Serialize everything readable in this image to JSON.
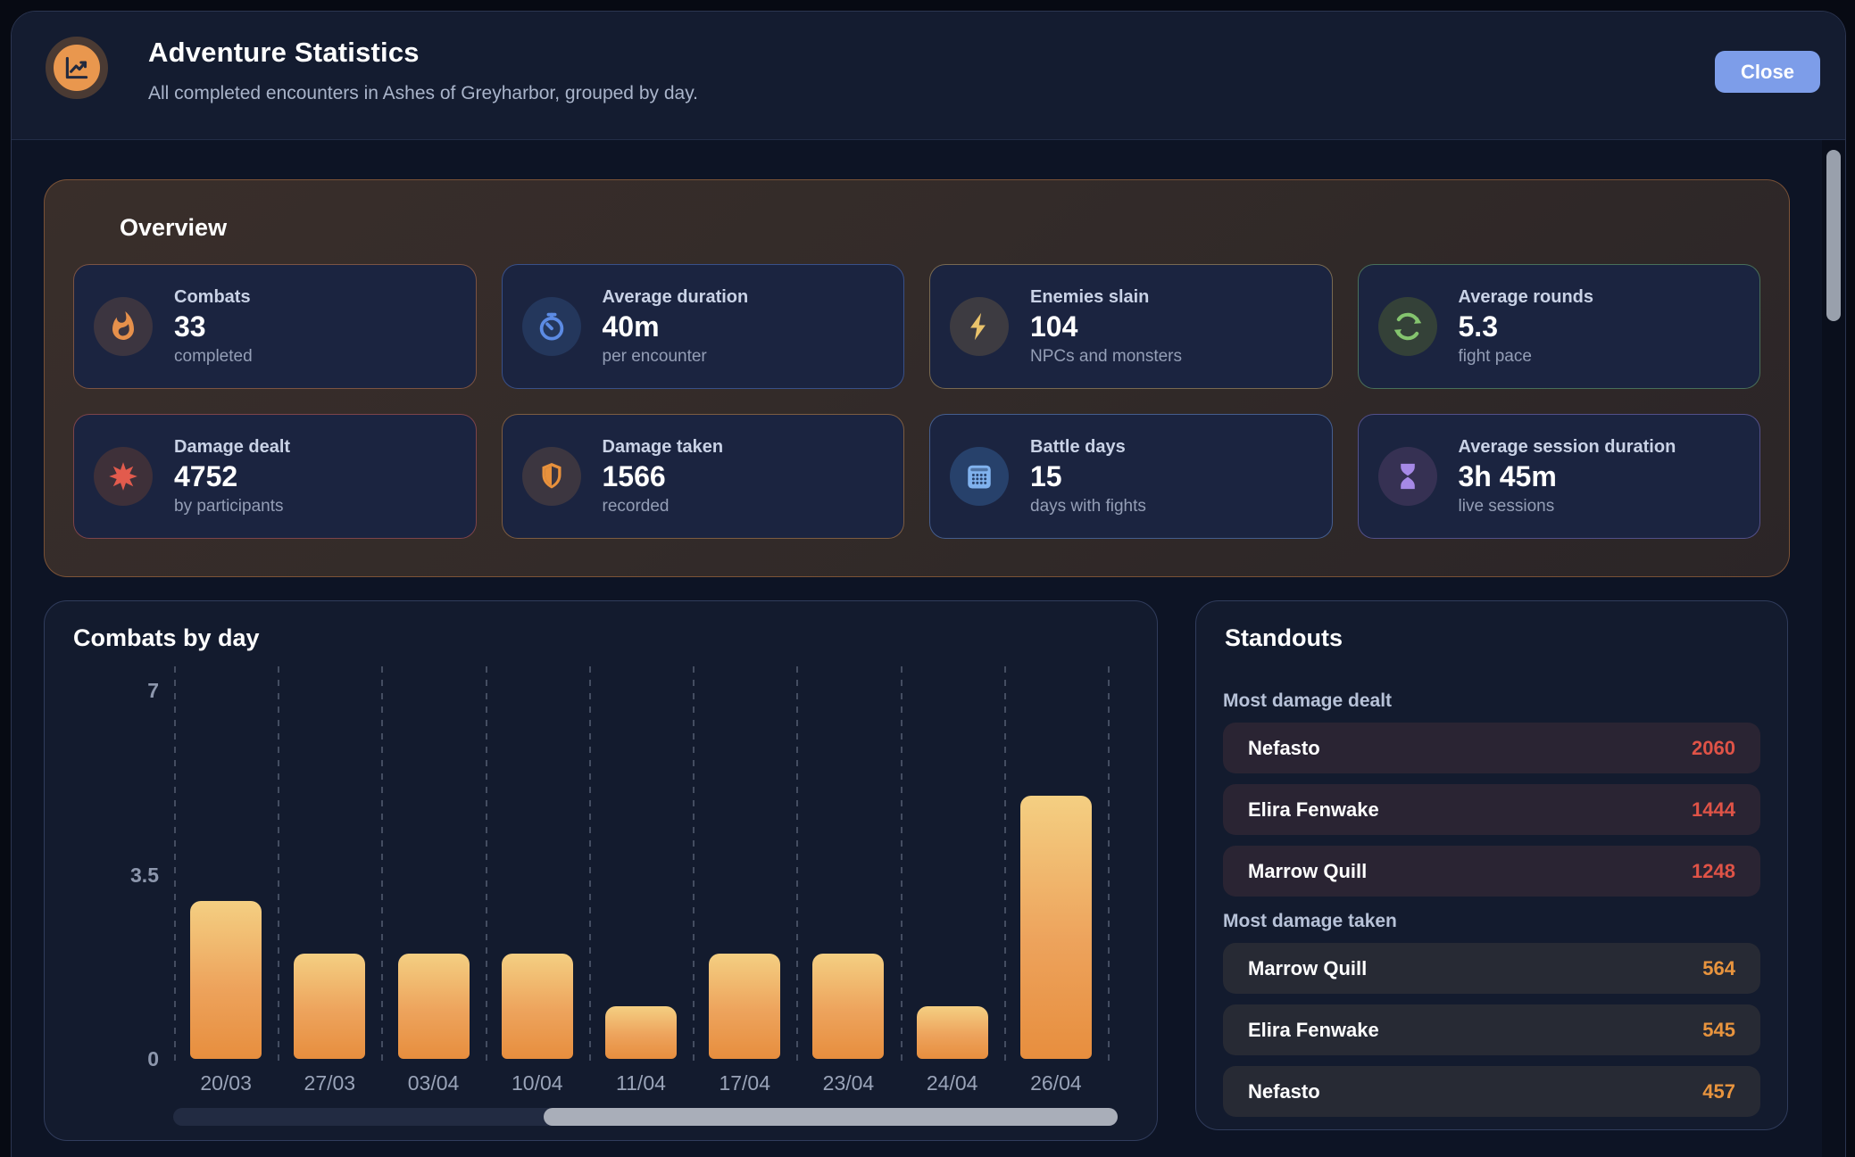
{
  "header": {
    "title": "Adventure Statistics",
    "subtitle": "All completed encounters in Ashes of Greyharbor, grouped by day.",
    "close_label": "Close",
    "icon": "line-chart-icon"
  },
  "overview": {
    "title": "Overview",
    "cards": [
      {
        "id": "combats",
        "icon": "flame-icon",
        "label": "Combats",
        "value": "33",
        "sub": "completed",
        "accent": "#e6904b",
        "circle_bg": "#3c3540",
        "border": "rgba(203,122,69,0.55)"
      },
      {
        "id": "average-duration",
        "icon": "timer-icon",
        "label": "Average duration",
        "value": "40m",
        "sub": "per encounter",
        "accent": "#5c8be4",
        "circle_bg": "#24375c",
        "border": "rgba(88,124,208,0.50)"
      },
      {
        "id": "enemies-slain",
        "icon": "lightning-icon",
        "label": "Enemies slain",
        "value": "104",
        "sub": "NPCs and monsters",
        "accent": "#eac36b",
        "circle_bg": "#3d3b41",
        "border": "rgba(196,162,95,0.55)"
      },
      {
        "id": "average-rounds",
        "icon": "refresh-icon",
        "label": "Average rounds",
        "value": "5.3",
        "sub": "fight pace",
        "accent": "#84c46e",
        "circle_bg": "#344138",
        "border": "rgba(120,185,116,0.50)"
      },
      {
        "id": "damage-dealt",
        "icon": "burst-icon",
        "label": "Damage dealt",
        "value": "4752",
        "sub": "by participants",
        "accent": "#e25b4d",
        "circle_bg": "#3e3039",
        "border": "rgba(206,94,82,0.55)"
      },
      {
        "id": "damage-taken",
        "icon": "shield-icon",
        "label": "Damage taken",
        "value": "1566",
        "sub": "recorded",
        "accent": "#e8913c",
        "circle_bg": "#3c3640",
        "border": "rgba(206,139,66,0.55)"
      },
      {
        "id": "battle-days",
        "icon": "calendar-icon",
        "label": "Battle days",
        "value": "15",
        "sub": "days with fights",
        "accent": "#80b2ee",
        "circle_bg": "#27416b",
        "border": "rgba(112,152,219,0.50)"
      },
      {
        "id": "average-session-duration",
        "icon": "hourglass-icon",
        "label": "Average session duration",
        "value": "3h 45m",
        "sub": "live sessions",
        "accent": "#a689e6",
        "circle_bg": "#363153",
        "border": "rgba(140,124,209,0.50)"
      }
    ]
  },
  "chart_data": {
    "type": "bar",
    "title": "Combats by day",
    "categories": [
      "20/03",
      "27/03",
      "03/04",
      "10/04",
      "11/04",
      "17/04",
      "23/04",
      "24/04",
      "26/04"
    ],
    "values": [
      3,
      2,
      2,
      2,
      1,
      2,
      2,
      1,
      5
    ],
    "y_tick_labels": [
      "0",
      "3.5",
      "7"
    ],
    "y_ticks": [
      0,
      3.5,
      7
    ],
    "ylim": [
      0,
      7
    ],
    "grid": "vertical-dashed",
    "legend": "none",
    "bar_color_top": "#f4cf82",
    "bar_color_bottom": "#e78e3e",
    "horizontal_scrollbar": true
  },
  "standouts": {
    "title": "Standouts",
    "sections": [
      {
        "label": "Most damage dealt",
        "value_color": "#df5347",
        "row_bg": "#2a2433",
        "rows": [
          {
            "name": "Nefasto",
            "value": "2060"
          },
          {
            "name": "Elira Fenwake",
            "value": "1444"
          },
          {
            "name": "Marrow Quill",
            "value": "1248"
          }
        ]
      },
      {
        "label": "Most damage taken",
        "value_color": "#e8943e",
        "row_bg": "#272a34",
        "rows": [
          {
            "name": "Marrow Quill",
            "value": "564"
          },
          {
            "name": "Elira Fenwake",
            "value": "545"
          },
          {
            "name": "Nefasto",
            "value": "457"
          }
        ]
      }
    ]
  }
}
